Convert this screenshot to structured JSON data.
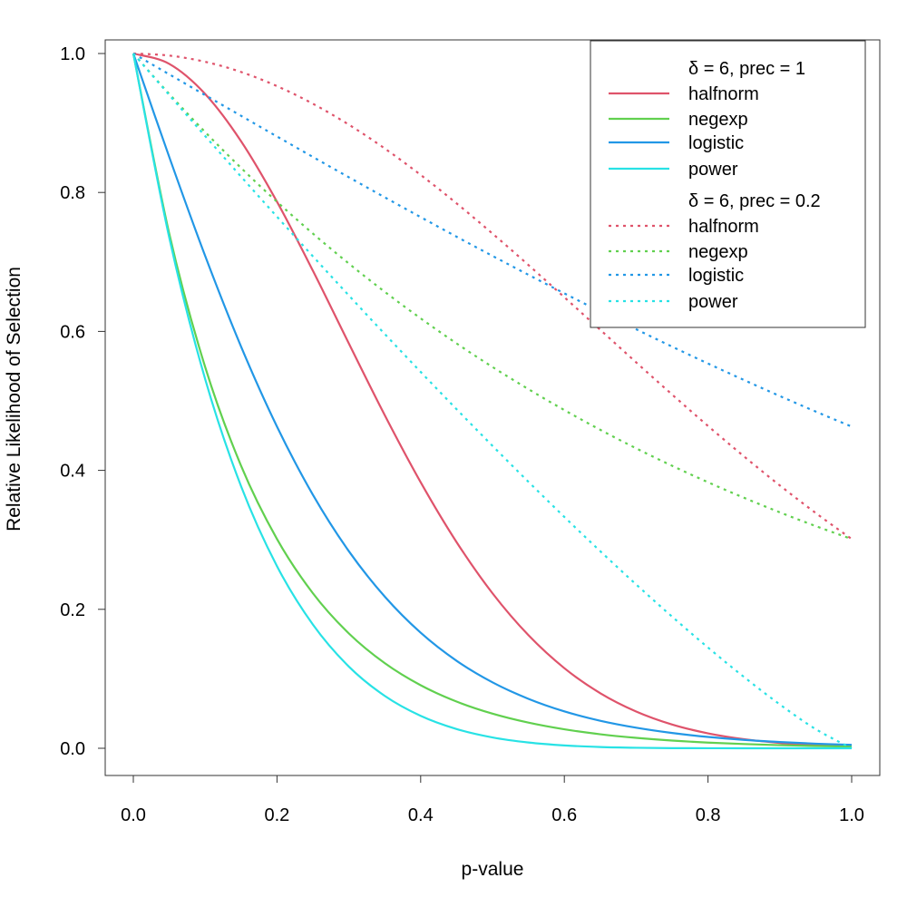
{
  "chart_data": {
    "type": "line",
    "xlabel": "p-value",
    "ylabel": "Relative Likelihood of Selection",
    "xlim": [
      0,
      1
    ],
    "ylim": [
      0,
      1
    ],
    "x_ticks": [
      "0.0",
      "0.2",
      "0.4",
      "0.6",
      "0.8",
      "1.0"
    ],
    "y_ticks": [
      "0.0",
      "0.2",
      "0.4",
      "0.6",
      "0.8",
      "1.0"
    ],
    "grid": false,
    "legend_placement": "top-right",
    "colors": {
      "halfnorm": "#DF536B",
      "negexp": "#61D04F",
      "logistic": "#2297E6",
      "power": "#28E2E5"
    },
    "x": [
      0,
      0.05,
      0.1,
      0.15,
      0.2,
      0.25,
      0.3,
      0.35,
      0.4,
      0.45,
      0.5,
      0.55,
      0.6,
      0.65,
      0.7,
      0.75,
      0.8,
      0.85,
      0.9,
      0.95,
      1
    ],
    "groups": [
      {
        "title": "δ = 6, prec = 1",
        "line_style": "solid",
        "series": [
          {
            "name": "halfnorm",
            "values": [
              1,
              0.9851,
              0.9418,
              0.8737,
              0.7866,
              0.6873,
              0.5827,
              0.4795,
              0.3829,
              0.2967,
              0.2231,
              0.1628,
              0.1153,
              0.0793,
              0.0529,
              0.0342,
              0.0215,
              0.0131,
              0.0077,
              0.0045,
              0.0025
            ]
          },
          {
            "name": "negexp",
            "values": [
              1,
              0.7408,
              0.5488,
              0.4066,
              0.3012,
              0.2231,
              0.1653,
              0.1225,
              0.0907,
              0.0672,
              0.0498,
              0.0369,
              0.0273,
              0.0202,
              0.015,
              0.0111,
              0.0082,
              0.0061,
              0.0045,
              0.0033,
              0.0025
            ]
          },
          {
            "name": "logistic",
            "values": [
              1,
              0.8511,
              0.7087,
              0.5781,
              0.463,
              0.3648,
              0.2837,
              0.2183,
              0.1663,
              0.1259,
              0.0949,
              0.0712,
              0.0531,
              0.0396,
              0.0296,
              0.022,
              0.0163,
              0.0121,
              0.009,
              0.0066,
              0.005
            ]
          },
          {
            "name": "power",
            "values": [
              1,
              0.7351,
              0.5314,
              0.3771,
              0.2621,
              0.178,
              0.1176,
              0.0754,
              0.0467,
              0.0277,
              0.0156,
              0.0083,
              0.0041,
              0.0018,
              0.0007,
              0.0002,
              0.0001,
              0,
              0,
              0,
              0
            ]
          }
        ]
      },
      {
        "title": "δ = 6, prec = 0.2",
        "line_style": "dotted",
        "series": [
          {
            "name": "halfnorm",
            "values": [
              1,
              0.997,
              0.9881,
              0.9734,
              0.9531,
              0.9277,
              0.8976,
              0.8633,
              0.8253,
              0.7843,
              0.7408,
              0.6956,
              0.6492,
              0.6023,
              0.5554,
              0.5092,
              0.4639,
              0.4202,
              0.3783,
              0.3386,
              0.3012
            ]
          },
          {
            "name": "negexp",
            "values": [
              1,
              0.9418,
              0.8869,
              0.8353,
              0.7866,
              0.7408,
              0.6977,
              0.657,
              0.6188,
              0.5827,
              0.5488,
              0.5169,
              0.4868,
              0.4584,
              0.4317,
              0.4066,
              0.3829,
              0.3606,
              0.3396,
              0.3198,
              0.3012
            ]
          },
          {
            "name": "logistic",
            "values": [
              1,
              0.97,
              0.9401,
              0.9103,
              0.8806,
              0.8511,
              0.8219,
              0.793,
              0.7645,
              0.7363,
              0.7087,
              0.6815,
              0.6548,
              0.6286,
              0.6031,
              0.5781,
              0.5538,
              0.5301,
              0.507,
              0.4846,
              0.463
            ]
          },
          {
            "name": "power",
            "values": [
              1,
              0.9403,
              0.8812,
              0.8228,
              0.7651,
              0.7081,
              0.6518,
              0.5963,
              0.5417,
              0.488,
              0.4353,
              0.3836,
              0.333,
              0.2837,
              0.2358,
              0.1895,
              0.145,
              0.1027,
              0.0631,
              0.0275,
              0
            ]
          }
        ]
      }
    ]
  }
}
